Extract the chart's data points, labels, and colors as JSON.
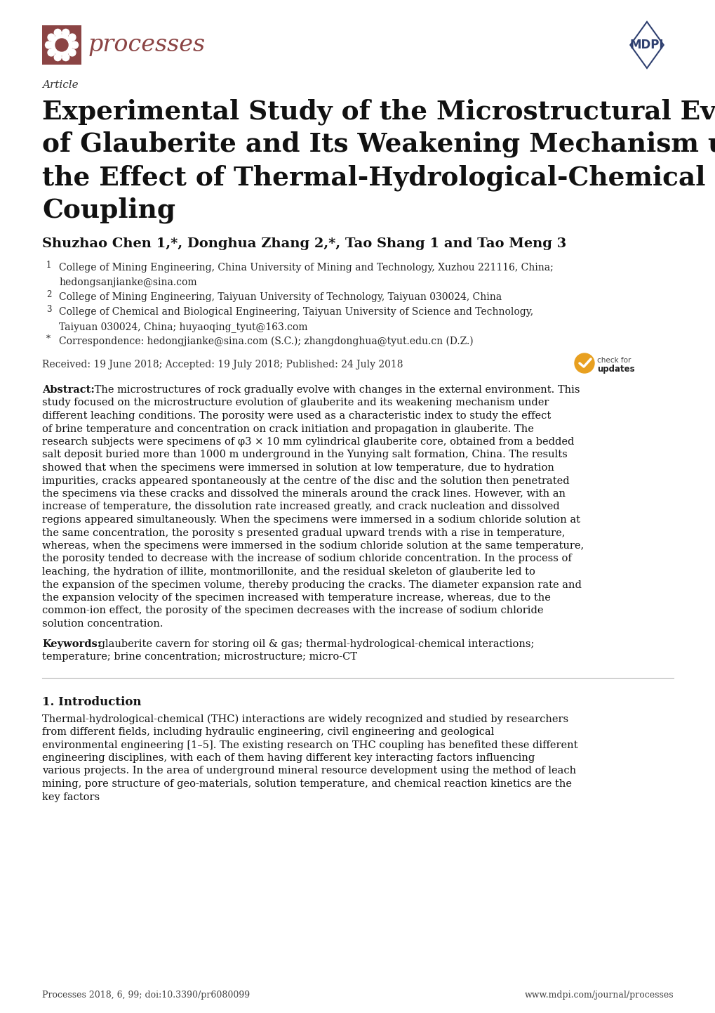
{
  "bg_color": "#ffffff",
  "title_line1": "Experimental Study of the Microstructural Evolution",
  "title_line2": "of Glauberite and Its Weakening Mechanism under",
  "title_line3": "the Effect of Thermal-Hydrological-Chemical",
  "title_line4": "Coupling",
  "article_label": "Article",
  "journal_name": "processes",
  "received": "Received: 19 June 2018; Accepted: 19 July 2018; Published: 24 July 2018",
  "abstract_text": "The microstructures of rock gradually evolve with changes in the external environment. This study focused on the microstructure evolution of glauberite and its weakening mechanism under different leaching conditions. The porosity were used as a characteristic index to study the effect of brine temperature and concentration on crack initiation and propagation in glauberite. The research subjects were specimens of φ3 × 10 mm cylindrical glauberite core, obtained from a bedded salt deposit buried more than 1000 m underground in the Yunying salt formation, China. The results showed that when the specimens were immersed in solution at low temperature, due to hydration impurities, cracks appeared spontaneously at the centre of the disc and the solution then penetrated the specimens via these cracks and dissolved the minerals around the crack lines. However, with an increase of temperature, the dissolution rate increased greatly, and crack nucleation and dissolved regions appeared simultaneously. When the specimens were immersed in a sodium chloride solution at the same concentration, the porosity s presented gradual upward trends with a rise in temperature, whereas, when the specimens were immersed in the sodium chloride solution at the same temperature, the porosity tended to decrease with the increase of sodium chloride concentration. In the process of leaching, the hydration of illite, montmorillonite, and the residual skeleton of glauberite led to the expansion of the specimen volume, thereby producing the cracks. The diameter expansion rate and the expansion velocity of the specimen increased with temperature increase, whereas, due to the common-ion effect, the porosity of the specimen decreases with the increase of sodium chloride solution concentration.",
  "keywords_text": "glauberite cavern for storing oil & gas; thermal-hydrological-chemical interactions; temperature; brine concentration; microstructure; micro-CT",
  "section1_title": "1. Introduction",
  "section1_text": "Thermal-hydrological-chemical (THC) interactions are widely recognized and studied by researchers from different fields, including hydraulic engineering, civil engineering and geological environmental engineering [1–5]. The existing research on THC coupling has benefited these different engineering disciplines, with each of them having different key interacting factors influencing various projects. In the area of underground mineral resource development using the method of leach mining, pore structure of geo-materials, solution temperature, and chemical reaction kinetics are the key factors",
  "footer_left": "Processes 2018, 6, 99; doi:10.3390/pr6080099",
  "footer_right": "www.mdpi.com/journal/processes",
  "processes_color": "#8B4444",
  "mdpi_color": "#2F4070",
  "hr_color": "#bbbbbb",
  "affil_data": [
    [
      "1",
      "College of Mining Engineering, China University of Mining and Technology, Xuzhou 221116, China;"
    ],
    [
      "",
      "hedongsanjianke@sina.com"
    ],
    [
      "2",
      "College of Mining Engineering, Taiyuan University of Technology, Taiyuan 030024, China"
    ],
    [
      "3",
      "College of Chemical and Biological Engineering, Taiyuan University of Science and Technology,"
    ],
    [
      "",
      "Taiyuan 030024, China; huyaoqing_tyut@163.com"
    ],
    [
      "*",
      "Correspondence: hedongjianke@sina.com (S.C.); zhangdonghua@tyut.edu.cn (D.Z.)"
    ]
  ]
}
